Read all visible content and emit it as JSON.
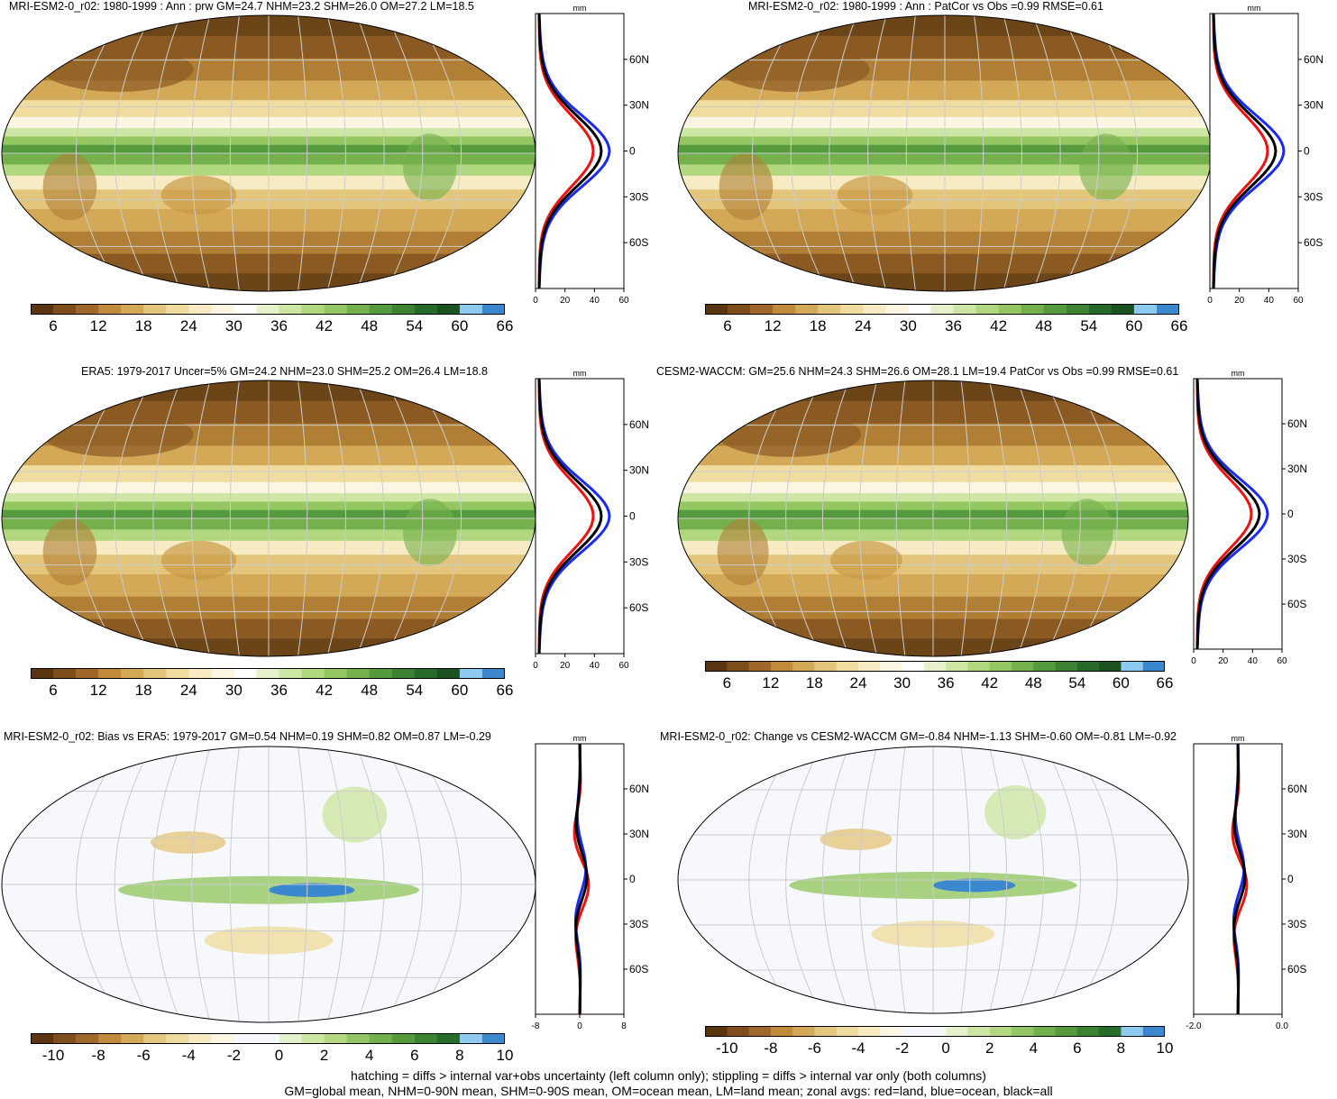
{
  "panels": [
    {
      "id": "p1",
      "title": "MRI-ESM2-0_r02: 1980-1999 : Ann : prw GM=24.7 NHM=23.2 SHM=26.0 OM=27.2 LM=18.5",
      "scale": "abs",
      "colorbar_ticks": [
        "6",
        "12",
        "18",
        "24",
        "30",
        "36",
        "42",
        "48",
        "54",
        "60",
        "66"
      ],
      "zonal_unit": "mm",
      "zonal_lat_ticks": [
        "60N",
        "30N",
        "0",
        "30S",
        "60S"
      ],
      "zonal_x_ticks": [
        "0",
        "20",
        "40",
        "60"
      ]
    },
    {
      "id": "p2",
      "title": "MRI-ESM2-0_r02: 1980-1999 : Ann : PatCor vs Obs =0.99 RMSE=0.61",
      "scale": "abs",
      "colorbar_ticks": [
        "6",
        "12",
        "18",
        "24",
        "30",
        "36",
        "42",
        "48",
        "54",
        "60",
        "66"
      ],
      "zonal_unit": "mm",
      "zonal_lat_ticks": [
        "60N",
        "30N",
        "0",
        "30S",
        "60S"
      ],
      "zonal_x_ticks": [
        "0",
        "20",
        "40",
        "60"
      ]
    },
    {
      "id": "p3",
      "title": "ERA5: 1979-2017 Uncer=5% GM=24.2 NHM=23.0 SHM=25.2 OM=26.4 LM=18.8",
      "scale": "abs",
      "colorbar_ticks": [
        "6",
        "12",
        "18",
        "24",
        "30",
        "36",
        "42",
        "48",
        "54",
        "60",
        "66"
      ],
      "zonal_unit": "mm",
      "zonal_lat_ticks": [
        "60N",
        "30N",
        "0",
        "30S",
        "60S"
      ],
      "zonal_x_ticks": [
        "0",
        "20",
        "40",
        "60"
      ]
    },
    {
      "id": "p4",
      "title": "CESM2-WACCM: GM=25.6 NHM=24.3 SHM=26.6 OM=28.1 LM=19.4 PatCor vs Obs =0.99 RMSE=0.61",
      "scale": "abs",
      "colorbar_ticks": [
        "6",
        "12",
        "18",
        "24",
        "30",
        "36",
        "42",
        "48",
        "54",
        "60",
        "66"
      ],
      "zonal_unit": "mm",
      "zonal_lat_ticks": [
        "60N",
        "30N",
        "0",
        "30S",
        "60S"
      ],
      "zonal_x_ticks": [
        "0",
        "20",
        "40",
        "60"
      ]
    },
    {
      "id": "p5",
      "title": "MRI-ESM2-0_r02: Bias vs ERA5: 1979-2017 GM=0.54 NHM=0.19 SHM=0.82 OM=0.87 LM=-0.29",
      "scale": "diff",
      "colorbar_ticks": [
        "-10",
        "-8",
        "-6",
        "-4",
        "-2",
        "0",
        "2",
        "4",
        "6",
        "8",
        "10"
      ],
      "zonal_unit": "mm",
      "zonal_lat_ticks": [
        "60N",
        "30N",
        "0",
        "30S",
        "60S"
      ],
      "zonal_x_ticks": [
        "-8",
        "0",
        "8"
      ]
    },
    {
      "id": "p6",
      "title": "MRI-ESM2-0_r02: Change vs CESM2-WACCM GM=-0.84 NHM=-1.13 SHM=-0.60 OM=-0.81 LM=-0.92",
      "scale": "diff",
      "colorbar_ticks": [
        "-10",
        "-8",
        "-6",
        "-4",
        "-2",
        "0",
        "2",
        "4",
        "6",
        "8",
        "10"
      ],
      "zonal_unit": "mm",
      "zonal_lat_ticks": [
        "60N",
        "30N",
        "0",
        "30S",
        "60S"
      ],
      "zonal_x_ticks": [
        "-2.0",
        "0.0"
      ]
    }
  ],
  "palettes": {
    "abs": [
      "#5a3510",
      "#7d4d1c",
      "#a0672a",
      "#c08a3a",
      "#d3a957",
      "#e3c57c",
      "#efdc9e",
      "#f6ebc2",
      "#fbf5e2",
      "#ffffff",
      "#e6f2cc",
      "#cde6a3",
      "#b1d77f",
      "#94c761",
      "#74b14c",
      "#569a3e",
      "#3d8232",
      "#276a2a",
      "#1b5220",
      "#8ecaf0",
      "#3b88cf"
    ],
    "diff": [
      "#5a3510",
      "#7d4d1c",
      "#a0672a",
      "#c08a3a",
      "#d3a957",
      "#e3c57c",
      "#efdc9e",
      "#f6ebc2",
      "#fbf5e2",
      "#f7f8fc",
      "#f7f8fc",
      "#e6f2cc",
      "#cde6a3",
      "#b1d77f",
      "#94c761",
      "#74b14c",
      "#569a3e",
      "#3d8232",
      "#276a2a",
      "#8ecaf0",
      "#3b88cf"
    ]
  },
  "series_colors": {
    "land": "#ee1111",
    "ocean": "#1a2bee",
    "all": "#000000"
  },
  "footer": {
    "line1": "hatching = diffs > internal var+obs uncertainty (left column only); stippling = diffs > internal var only (both columns)",
    "line2": "GM=global mean, NHM=0-90N mean, SHM=0-90S mean, OM=ocean mean, LM=land mean; zonal avgs: red=land, blue=ocean, black=all"
  }
}
